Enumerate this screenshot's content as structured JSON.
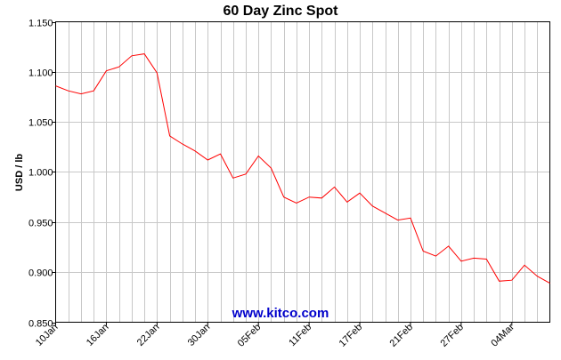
{
  "chart_data": {
    "type": "line",
    "title": "60 Day Zinc Spot",
    "xlabel": "",
    "ylabel": "USD / lb",
    "watermark": "www.kitco.com",
    "ylim": [
      0.85,
      1.15
    ],
    "yticks": [
      "0.850",
      "0.900",
      "0.950",
      "1.000",
      "1.050",
      "1.100",
      "1.150"
    ],
    "x_tick_labels": [
      "10Jan",
      "16Jan",
      "22Jan",
      "30Jan",
      "05Feb",
      "11Feb",
      "17Feb",
      "21Feb",
      "27Feb",
      "04Mar"
    ],
    "x_tick_positions": [
      0,
      4,
      8,
      12,
      16,
      20,
      24,
      28,
      32,
      36
    ],
    "grid": true,
    "series": [
      {
        "color": "#ff0000",
        "values": [
          1.086,
          1.081,
          1.078,
          1.081,
          1.101,
          1.105,
          1.116,
          1.118,
          1.099,
          1.036,
          1.028,
          1.021,
          1.012,
          1.018,
          0.994,
          0.998,
          1.016,
          1.004,
          0.975,
          0.969,
          0.975,
          0.974,
          0.985,
          0.97,
          0.979,
          0.966,
          0.959,
          0.952,
          0.954,
          0.921,
          0.916,
          0.926,
          0.911,
          0.914,
          0.913,
          0.891,
          0.892,
          0.907,
          0.896,
          0.889
        ]
      }
    ]
  }
}
